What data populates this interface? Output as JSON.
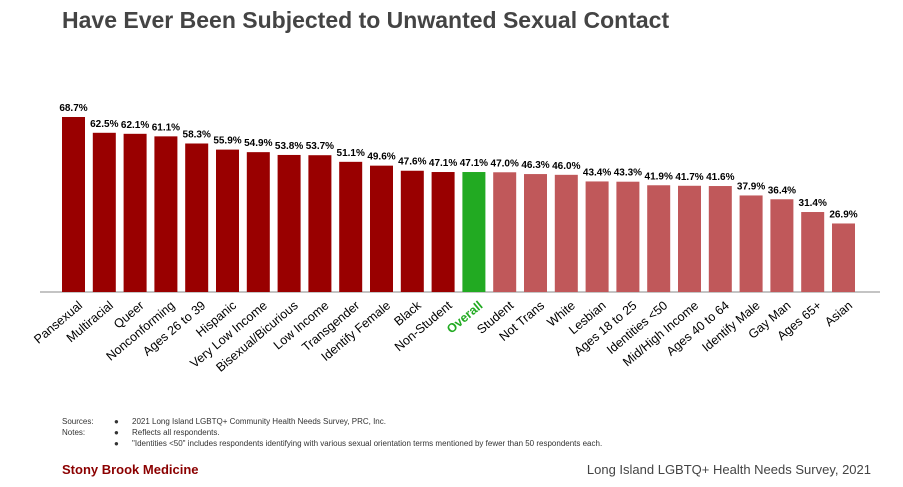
{
  "title": "Have Ever Been Subjected to Unwanted Sexual Contact",
  "notes": {
    "sources_label": "Sources:",
    "notes_label": "Notes:",
    "bullet": "●",
    "source_text": "2021 Long Island LGBTQ+ Community Health Needs Survey, PRC, Inc.",
    "note1": "Reflects all respondents.",
    "note2": "\"Identities <50\" includes respondents identifying with various sexual orientation terms mentioned by fewer than 50 respondents each."
  },
  "footer": {
    "left": "Stony Brook Medicine",
    "right": "Long Island LGBTQ+ Health Needs Survey, 2021"
  },
  "colors": {
    "dark": "#990000",
    "light": "#C0585A",
    "highlight": "#22AA22",
    "axis": "#888888"
  },
  "chart_data": {
    "type": "bar",
    "ylim": [
      0,
      75
    ],
    "highlight": "Overall",
    "categories": [
      "Pansexual",
      "Multiracial",
      "Queer",
      "Nonconforming",
      "Ages 26 to 39",
      "Hispanic",
      "Very Low Income",
      "Bisexual/Bicurious",
      "Low Income",
      "Transgender",
      "Identify Female",
      "Black",
      "Non-Student",
      "Overall",
      "Student",
      "Not Trans",
      "White",
      "Lesbian",
      "Ages 18 to 25",
      "Identities <50",
      "Mid/High Income",
      "Ages 40 to 64",
      "Identify Male",
      "Gay Man",
      "Ages 65+",
      "Asian"
    ],
    "values": [
      68.7,
      62.5,
      62.1,
      61.1,
      58.3,
      55.9,
      54.9,
      53.8,
      53.7,
      51.1,
      49.6,
      47.6,
      47.1,
      47.1,
      47.0,
      46.3,
      46.0,
      43.4,
      43.3,
      41.9,
      41.7,
      41.6,
      37.9,
      36.4,
      31.4,
      26.9
    ],
    "labels": [
      "68.7%",
      "62.5%",
      "62.1%",
      "61.1%",
      "58.3%",
      "55.9%",
      "54.9%",
      "53.8%",
      "53.7%",
      "51.1%",
      "49.6%",
      "47.6%",
      "47.1%",
      "47.1%",
      "47.0%",
      "46.3%",
      "46.0%",
      "43.4%",
      "43.3%",
      "41.9%",
      "41.7%",
      "41.6%",
      "37.9%",
      "36.4%",
      "31.4%",
      "26.9%"
    ],
    "group": [
      "dark",
      "dark",
      "dark",
      "dark",
      "dark",
      "dark",
      "dark",
      "dark",
      "dark",
      "dark",
      "dark",
      "dark",
      "dark",
      "highlight",
      "light",
      "light",
      "light",
      "light",
      "light",
      "light",
      "light",
      "light",
      "light",
      "light",
      "light",
      "light"
    ]
  }
}
